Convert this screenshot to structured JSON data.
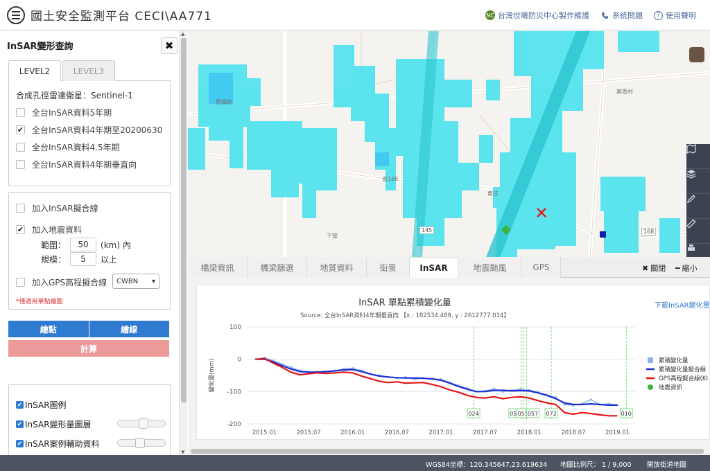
{
  "header": {
    "title": "國土安全監測平台 CECI\\AA771",
    "links": {
      "maintainer": "台灣世曦防災中心製作維護",
      "issues": "系統問題",
      "disclaimer": "使用聲明"
    },
    "ncdr_logo_text": "NC"
  },
  "left_panel": {
    "title": "InSAR變形查詢",
    "close_label": "✖",
    "tabs": [
      "LEVEL2",
      "LEVEL3"
    ],
    "satellite_label": "合成孔徑雷達衛星：Sentinel-1",
    "datasets": [
      {
        "label": "全台InSAR資料5年期",
        "checked": false
      },
      {
        "label": "全台InSAR資料4年期至20200630",
        "checked": true
      },
      {
        "label": "全台InSAR資料4.5年期",
        "checked": false
      },
      {
        "label": "全台InSAR資料4年期垂直向",
        "checked": false
      }
    ],
    "options": {
      "fit_line": {
        "label": "加入InSAR擬合線",
        "checked": false
      },
      "quake": {
        "label": "加入地震資料",
        "checked": true
      },
      "range_label": "範圍：",
      "range_value": "50",
      "range_unit": "(km) 內",
      "scale_label": "規模：",
      "scale_value": "5",
      "scale_unit": "以上",
      "gps": {
        "label": "加入GPS高程擬合線",
        "checked": false
      },
      "gps_station": "CWBN",
      "note": "*僅適用單點繪圖"
    },
    "buttons": {
      "plot_point": "繪點",
      "plot_line": "繪線",
      "calculate": "計算"
    },
    "layers": [
      {
        "label": "InSAR圖例",
        "checked": true,
        "opacity": null
      },
      {
        "label": "InSAR變形量圖層",
        "checked": true,
        "opacity": 0.55
      },
      {
        "label": "InSAR案例輔助資料",
        "checked": true,
        "opacity": 0.45
      }
    ]
  },
  "map": {
    "labels": {
      "place1": "舊鐵路",
      "place2": "客厝村",
      "town": "東庄",
      "road1": "省188",
      "road2": "下營"
    },
    "road_numbers": [
      "145",
      "168"
    ],
    "toolbar_icons": [
      "map-icon",
      "layers-icon",
      "pen-icon",
      "ruler-icon",
      "print-icon"
    ]
  },
  "bottom_tabs": {
    "tabs": [
      "橋梁資訊",
      "橋梁篩選",
      "地質資料",
      "街景",
      "InSAR",
      "地震颱風",
      "GPS"
    ],
    "active": "InSAR",
    "close": "關閉",
    "shrink": "縮小"
  },
  "chart": {
    "download": "下載InSAR變化量",
    "chart_data": {
      "type": "line",
      "title": "InSAR 單點累積變化量",
      "subtitle": "Source: 全台InSAR資料4年期垂直向 【x : 182534.489, y : 2612777.034】",
      "ylabel": "變化量(mm)",
      "xlabel": "",
      "ylim": [
        -200,
        100
      ],
      "yticks": [
        100,
        0,
        -100,
        -200
      ],
      "xticks": [
        {
          "label": "2015.01",
          "t": 2015.0
        },
        {
          "label": "2015.07",
          "t": 2015.5
        },
        {
          "label": "2016.01",
          "t": 2016.0
        },
        {
          "label": "2016.07",
          "t": 2016.5
        },
        {
          "label": "2017.01",
          "t": 2017.0
        },
        {
          "label": "2017.07",
          "t": 2017.5
        },
        {
          "label": "2018.01",
          "t": 2018.0
        },
        {
          "label": "2018.07",
          "t": 2018.5
        },
        {
          "label": "2019.01",
          "t": 2019.0
        }
      ],
      "xlim": [
        2014.8,
        2019.2
      ],
      "legend_position": "right",
      "series": [
        {
          "name": "累積變化量",
          "color": "#8db4e8",
          "style": "line-marker",
          "points": [
            [
              2014.9,
              0
            ],
            [
              2015.0,
              5
            ],
            [
              2015.1,
              -5
            ],
            [
              2015.2,
              -15
            ],
            [
              2015.3,
              -25
            ],
            [
              2015.4,
              -35
            ],
            [
              2015.5,
              -40
            ],
            [
              2015.6,
              -38
            ],
            [
              2015.7,
              -42
            ],
            [
              2015.8,
              -35
            ],
            [
              2015.9,
              -30
            ],
            [
              2016.0,
              -28
            ],
            [
              2016.1,
              -35
            ],
            [
              2016.2,
              -45
            ],
            [
              2016.3,
              -50
            ],
            [
              2016.4,
              -55
            ],
            [
              2016.5,
              -58
            ],
            [
              2016.6,
              -56
            ],
            [
              2016.7,
              -62
            ],
            [
              2016.8,
              -58
            ],
            [
              2016.9,
              -60
            ],
            [
              2017.0,
              -62
            ],
            [
              2017.1,
              -72
            ],
            [
              2017.2,
              -82
            ],
            [
              2017.3,
              -90
            ],
            [
              2017.4,
              -100
            ],
            [
              2017.5,
              -98
            ],
            [
              2017.6,
              -92
            ],
            [
              2017.7,
              -100
            ],
            [
              2017.8,
              -96
            ],
            [
              2017.9,
              -92
            ],
            [
              2018.0,
              -95
            ],
            [
              2018.1,
              -102
            ],
            [
              2018.2,
              -110
            ],
            [
              2018.3,
              -118
            ],
            [
              2018.4,
              -140
            ],
            [
              2018.5,
              -142
            ],
            [
              2018.6,
              -138
            ],
            [
              2018.7,
              -125
            ],
            [
              2018.8,
              -140
            ],
            [
              2018.9,
              -138
            ],
            [
              2019.0,
              -142
            ]
          ]
        },
        {
          "name": "累積變化量擬合線",
          "color": "#1f2ed1",
          "style": "line",
          "points": [
            [
              2014.9,
              0
            ],
            [
              2015.0,
              0
            ],
            [
              2015.1,
              -8
            ],
            [
              2015.2,
              -20
            ],
            [
              2015.3,
              -30
            ],
            [
              2015.4,
              -38
            ],
            [
              2015.5,
              -40
            ],
            [
              2015.6,
              -40
            ],
            [
              2015.7,
              -38
            ],
            [
              2015.8,
              -36
            ],
            [
              2015.9,
              -33
            ],
            [
              2016.0,
              -32
            ],
            [
              2016.1,
              -38
            ],
            [
              2016.2,
              -46
            ],
            [
              2016.3,
              -52
            ],
            [
              2016.4,
              -55
            ],
            [
              2016.5,
              -57
            ],
            [
              2016.6,
              -58
            ],
            [
              2016.7,
              -58
            ],
            [
              2016.8,
              -59
            ],
            [
              2016.9,
              -61
            ],
            [
              2017.0,
              -65
            ],
            [
              2017.1,
              -74
            ],
            [
              2017.2,
              -84
            ],
            [
              2017.3,
              -93
            ],
            [
              2017.4,
              -100
            ],
            [
              2017.5,
              -100
            ],
            [
              2017.6,
              -96
            ],
            [
              2017.7,
              -96
            ],
            [
              2017.8,
              -98
            ],
            [
              2017.9,
              -97
            ],
            [
              2018.0,
              -98
            ],
            [
              2018.1,
              -104
            ],
            [
              2018.2,
              -112
            ],
            [
              2018.3,
              -122
            ],
            [
              2018.4,
              -135
            ],
            [
              2018.5,
              -140
            ],
            [
              2018.6,
              -140
            ],
            [
              2018.7,
              -138
            ],
            [
              2018.8,
              -140
            ],
            [
              2018.9,
              -142
            ],
            [
              2019.0,
              -142
            ]
          ]
        },
        {
          "name": "GPS高程擬合線(KI",
          "color": "#e81515",
          "style": "line",
          "points": [
            [
              2014.9,
              0
            ],
            [
              2015.0,
              2
            ],
            [
              2015.1,
              -12
            ],
            [
              2015.2,
              -25
            ],
            [
              2015.3,
              -40
            ],
            [
              2015.4,
              -48
            ],
            [
              2015.5,
              -45
            ],
            [
              2015.6,
              -42
            ],
            [
              2015.7,
              -44
            ],
            [
              2015.8,
              -42
            ],
            [
              2015.9,
              -40
            ],
            [
              2016.0,
              -42
            ],
            [
              2016.1,
              -52
            ],
            [
              2016.2,
              -60
            ],
            [
              2016.3,
              -68
            ],
            [
              2016.4,
              -72
            ],
            [
              2016.5,
              -70
            ],
            [
              2016.6,
              -74
            ],
            [
              2016.7,
              -73
            ],
            [
              2016.8,
              -72
            ],
            [
              2016.9,
              -78
            ],
            [
              2017.0,
              -85
            ],
            [
              2017.1,
              -95
            ],
            [
              2017.2,
              -102
            ],
            [
              2017.3,
              -112
            ],
            [
              2017.4,
              -118
            ],
            [
              2017.5,
              -120
            ],
            [
              2017.6,
              -116
            ],
            [
              2017.7,
              -122
            ],
            [
              2017.8,
              -118
            ],
            [
              2017.9,
              -116
            ],
            [
              2018.0,
              -120
            ],
            [
              2018.1,
              -128
            ],
            [
              2018.2,
              -135
            ],
            [
              2018.3,
              -140
            ],
            [
              2018.4,
              -165
            ],
            [
              2018.5,
              -170
            ],
            [
              2018.6,
              -165
            ],
            [
              2018.7,
              -168
            ],
            [
              2018.8,
              -172
            ],
            [
              2018.9,
              -175
            ],
            [
              2019.0,
              -175
            ]
          ]
        },
        {
          "name": "地震資訊",
          "color": "#3cb33c",
          "style": "marker",
          "points": []
        }
      ],
      "events": [
        {
          "label": "024",
          "t": 2017.37
        },
        {
          "label": "051",
          "t": 2017.91
        },
        {
          "label": "055",
          "t": 2017.93
        },
        {
          "label": "057",
          "t": 2017.97
        },
        {
          "label": "072",
          "t": 2018.25
        },
        {
          "label": "010",
          "t": 2019.1
        }
      ]
    }
  },
  "status_bar": {
    "coords": "WGS84坐標：120.345647,23.619634",
    "scale": "地圖比例尺： 1 / 9,000",
    "basemap": "開放街道地圖"
  }
}
